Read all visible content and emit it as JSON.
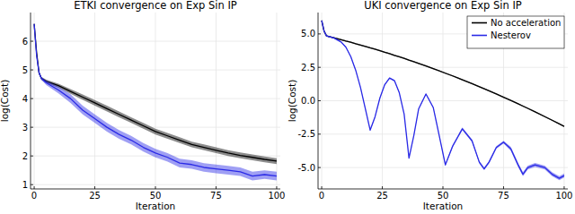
{
  "chart_data": [
    {
      "type": "line",
      "title": "ETKI convergence on Exp Sin IP",
      "x_label": "Iteration",
      "y_label": "log(Cost)",
      "x": [
        0,
        1,
        2,
        3,
        5,
        10,
        15,
        20,
        25,
        30,
        35,
        40,
        45,
        50,
        55,
        60,
        65,
        70,
        75,
        80,
        85,
        90,
        95,
        100
      ],
      "series": [
        {
          "color": "#000000",
          "values": [
            6.6,
            5.6,
            4.9,
            4.7,
            4.6,
            4.45,
            4.25,
            4.05,
            3.85,
            3.65,
            3.45,
            3.25,
            3.05,
            2.85,
            2.7,
            2.55,
            2.4,
            2.3,
            2.2,
            2.1,
            2.02,
            1.95,
            1.88,
            1.82
          ],
          "error": [
            0.05,
            0.05,
            0.05,
            0.05,
            0.06,
            0.07,
            0.08,
            0.09,
            0.1,
            0.1,
            0.1,
            0.1,
            0.1,
            0.1,
            0.1,
            0.1,
            0.1,
            0.1,
            0.1,
            0.1,
            0.1,
            0.1,
            0.1,
            0.1
          ]
        },
        {
          "color": "#2a2ae6",
          "values": [
            6.6,
            5.5,
            4.9,
            4.7,
            4.55,
            4.3,
            4.0,
            3.6,
            3.3,
            3.0,
            2.75,
            2.55,
            2.3,
            2.1,
            1.95,
            1.75,
            1.7,
            1.6,
            1.55,
            1.5,
            1.45,
            1.3,
            1.35,
            1.3
          ],
          "error": [
            0.05,
            0.05,
            0.05,
            0.05,
            0.08,
            0.12,
            0.15,
            0.15,
            0.15,
            0.15,
            0.15,
            0.15,
            0.15,
            0.15,
            0.15,
            0.15,
            0.15,
            0.15,
            0.15,
            0.15,
            0.15,
            0.15,
            0.15,
            0.15
          ]
        }
      ],
      "xlim": [
        -1.5,
        101.5
      ],
      "ylim": [
        0.85,
        7
      ],
      "xticks": [
        0,
        25,
        50,
        75,
        100
      ],
      "yticks": [
        1,
        2,
        3,
        4,
        5,
        6
      ],
      "grid": true
    },
    {
      "type": "line",
      "title": "UKI convergence on Exp Sin IP",
      "x_label": "Iteration",
      "y_label": "log(Cost)",
      "x": [
        0,
        1,
        2,
        3,
        5,
        8,
        10,
        12,
        14,
        16,
        18,
        20,
        22,
        24,
        26,
        28,
        30,
        32,
        34,
        36,
        38,
        40,
        43,
        46,
        48,
        51,
        54,
        58,
        62,
        65,
        67,
        69,
        72,
        75,
        78,
        81,
        83,
        85,
        88,
        92,
        95,
        98,
        100
      ],
      "series": [
        {
          "name": "No acceleration",
          "color": "#000000",
          "values": [
            6,
            5.2,
            4.85,
            4.8,
            4.71,
            4.57,
            4.47,
            4.38,
            4.27,
            4.17,
            4.07,
            3.96,
            3.86,
            3.75,
            3.63,
            3.52,
            3.4,
            3.29,
            3.17,
            3.04,
            2.92,
            2.79,
            2.6,
            2.4,
            2.27,
            2.06,
            1.86,
            1.57,
            1.28,
            1.05,
            0.9,
            0.74,
            0.51,
            0.26,
            0.02,
            -0.23,
            -0.4,
            -0.57,
            -0.83,
            -1.19,
            -1.46,
            -1.73,
            -1.92
          ],
          "error": [
            0.05,
            0.05,
            0.05,
            0.05,
            0.05,
            0.05,
            0.05,
            0.05,
            0.05,
            0.05,
            0.05,
            0.05,
            0.05,
            0.05,
            0.05,
            0.05,
            0.05,
            0.05,
            0.05,
            0.05,
            0.05,
            0.05,
            0.05,
            0.05,
            0.05,
            0.05,
            0.05,
            0.05,
            0.05,
            0.05,
            0.05,
            0.05,
            0.05,
            0.05,
            0.05,
            0.05,
            0.05,
            0.05,
            0.05,
            0.05,
            0.05,
            0.05,
            0.05
          ]
        },
        {
          "name": "Nesterov",
          "color": "#2a2ae6",
          "values": [
            6,
            5.2,
            4.85,
            4.8,
            4.7,
            4.4,
            4.0,
            3.3,
            2.3,
            1.0,
            -0.6,
            -2.2,
            -1.2,
            0.2,
            1.2,
            1.7,
            1.5,
            0.6,
            -1.0,
            -4.3,
            -2.6,
            -0.6,
            0.5,
            -0.5,
            -2.2,
            -4.8,
            -3.4,
            -2.1,
            -3.0,
            -4.6,
            -5.1,
            -4.6,
            -3.5,
            -3.1,
            -3.6,
            -4.8,
            -5.5,
            -5.0,
            -4.8,
            -5.0,
            -5.5,
            -5.8,
            -5.6
          ],
          "error": [
            0.05,
            0.05,
            0.05,
            0.05,
            0.05,
            0.05,
            0.05,
            0.05,
            0.05,
            0.05,
            0.05,
            0.05,
            0.05,
            0.05,
            0.05,
            0.05,
            0.05,
            0.05,
            0.05,
            0.05,
            0.05,
            0.05,
            0.05,
            0.05,
            0.05,
            0.1,
            0.1,
            0.1,
            0.1,
            0.1,
            0.1,
            0.1,
            0.1,
            0.1,
            0.15,
            0.15,
            0.15,
            0.15,
            0.15,
            0.15,
            0.15,
            0.15,
            0.15
          ]
        }
      ],
      "xlim": [
        -1.5,
        101.5
      ],
      "ylim": [
        -6.6,
        6.6
      ],
      "xticks": [
        0,
        25,
        50,
        75,
        100
      ],
      "yticks": [
        {
          "value": -5,
          "label": "-5.0"
        },
        {
          "value": -2.5,
          "label": "-2.5"
        },
        {
          "value": 0,
          "label": "0.0"
        },
        {
          "value": 2.5,
          "label": "2.5"
        },
        {
          "value": 5,
          "label": "5.0"
        }
      ],
      "grid": true,
      "legend": "top-right"
    }
  ]
}
